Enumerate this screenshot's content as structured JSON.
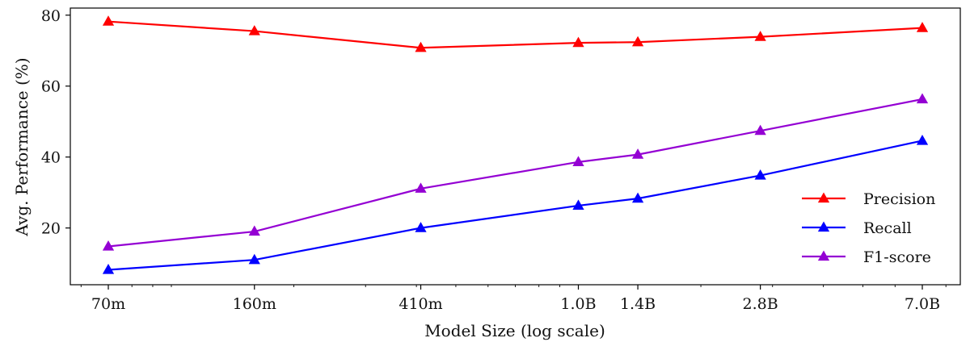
{
  "chart_data": {
    "type": "line",
    "title": "",
    "xlabel": "Model Size (log scale)",
    "ylabel": "Avg. Performance (%)",
    "x_scale": "log",
    "x": [
      70000000,
      160000000,
      410000000,
      1000000000,
      1400000000,
      2800000000,
      7000000000
    ],
    "x_tick_labels": [
      "70m",
      "160m",
      "410m",
      "1.0B",
      "1.4B",
      "2.8B",
      "7.0B"
    ],
    "y_ticks": [
      20,
      40,
      60,
      80
    ],
    "ylim": [
      4,
      82
    ],
    "grid": false,
    "legend_position": "lower-right",
    "series": [
      {
        "name": "Precision",
        "color": "#ff0000",
        "marker": "triangle",
        "values": [
          78.2,
          75.5,
          70.8,
          72.2,
          72.4,
          73.9,
          76.4
        ]
      },
      {
        "name": "Recall",
        "color": "#0000ff",
        "marker": "triangle",
        "values": [
          8.2,
          11.0,
          20.0,
          26.3,
          28.3,
          34.8,
          44.6
        ]
      },
      {
        "name": "F1-score",
        "color": "#9400d3",
        "marker": "triangle",
        "values": [
          14.8,
          19.0,
          31.1,
          38.6,
          40.7,
          47.4,
          56.3
        ]
      }
    ]
  }
}
